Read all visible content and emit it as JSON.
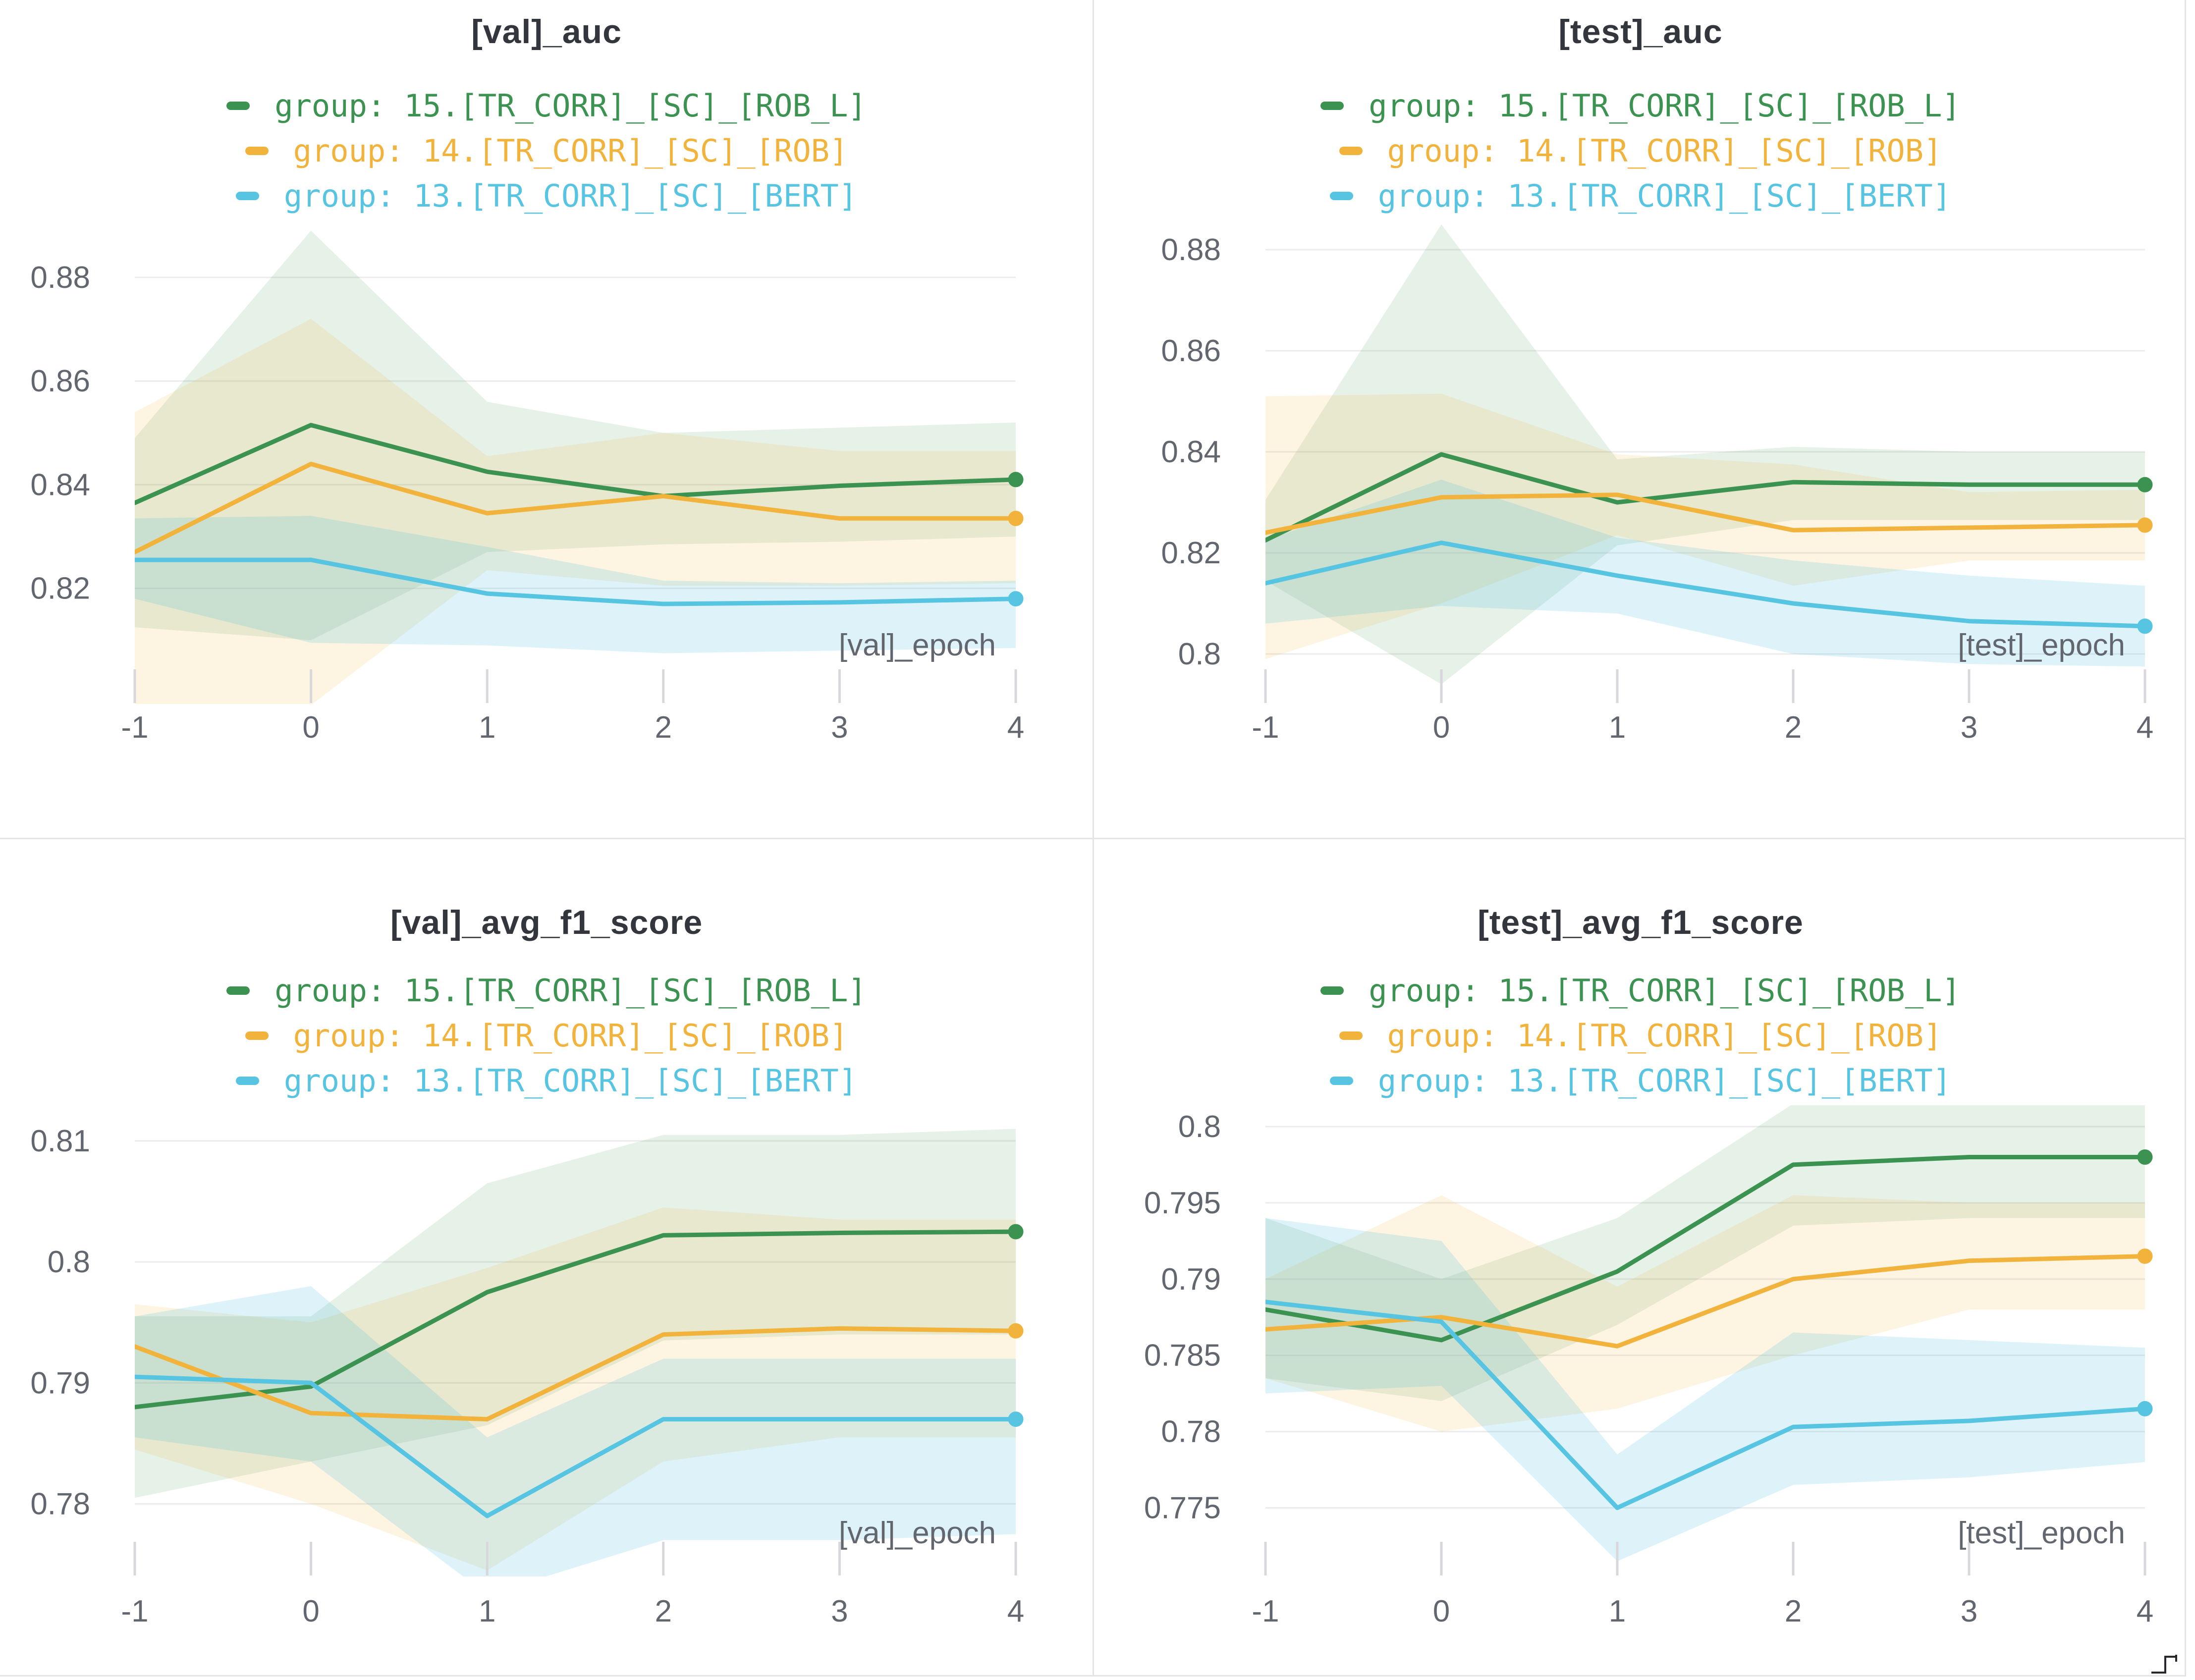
{
  "colors": {
    "green": "#3c9351",
    "orange": "#f1b33c",
    "cyan": "#57c4e1",
    "gridline": "#ececec",
    "tick_mark": "#d8d8dc",
    "axis_text": "#62676f",
    "title_text": "#33373d",
    "divider": "#e4e4e7"
  },
  "chart_data": [
    {
      "type": "line",
      "title": "[val]_auc",
      "xlabel": "[val]_epoch",
      "x": [
        -1,
        0,
        1,
        2,
        3,
        4
      ],
      "xtick_labels": [
        "-1",
        "0",
        "1",
        "2",
        "3",
        "4"
      ],
      "ytick_values": [
        0.88,
        0.86,
        0.84,
        0.82
      ],
      "ytick_labels": [
        "0.88",
        "0.86",
        "0.84",
        "0.82"
      ],
      "ylim": [
        0.7977,
        0.8904
      ],
      "grid": "horizontal",
      "legend_position": "top-center",
      "series": [
        {
          "name": "group: 15.[TR_CORR]_[SC]_[ROB_L]",
          "color": "#3c9351",
          "values": [
            0.8365,
            0.8515,
            0.8425,
            0.8378,
            0.8398,
            0.841
          ],
          "band_lo": [
            0.8125,
            0.81,
            0.827,
            0.8285,
            0.829,
            0.83
          ],
          "band_hi": [
            0.849,
            0.889,
            0.856,
            0.85,
            0.851,
            0.852
          ]
        },
        {
          "name": "group: 14.[TR_CORR]_[SC]_[ROB]",
          "color": "#f1b33c",
          "values": [
            0.827,
            0.844,
            0.8345,
            0.8378,
            0.8335,
            0.8335
          ],
          "band_lo": [
            0.7925,
            0.7975,
            0.8235,
            0.8205,
            0.8205,
            0.821
          ],
          "band_hi": [
            0.854,
            0.872,
            0.8455,
            0.85,
            0.8465,
            0.8465
          ]
        },
        {
          "name": "group: 13.[TR_CORR]_[SC]_[BERT]",
          "color": "#57c4e1",
          "values": [
            0.8255,
            0.8255,
            0.819,
            0.817,
            0.8173,
            0.818
          ],
          "band_lo": [
            0.818,
            0.8095,
            0.809,
            0.8075,
            0.808,
            0.8085
          ],
          "band_hi": [
            0.8335,
            0.834,
            0.828,
            0.8215,
            0.821,
            0.8215
          ]
        }
      ]
    },
    {
      "type": "line",
      "title": "[test]_auc",
      "xlabel": "[test]_epoch",
      "x": [
        -1,
        0,
        1,
        2,
        3,
        4
      ],
      "xtick_labels": [
        "-1",
        "0",
        "1",
        "2",
        "3",
        "4"
      ],
      "ytick_values": [
        0.88,
        0.86,
        0.84,
        0.82,
        0.8
      ],
      "ytick_labels": [
        "0.88",
        "0.86",
        "0.84",
        "0.82",
        "0.8"
      ],
      "ylim": [
        0.7901,
        0.8852
      ],
      "grid": "horizontal",
      "legend_position": "top-center",
      "series": [
        {
          "name": "group: 15.[TR_CORR]_[SC]_[ROB_L]",
          "color": "#3c9351",
          "values": [
            0.8225,
            0.8395,
            0.83,
            0.834,
            0.8335,
            0.8335
          ],
          "band_lo": [
            0.8145,
            0.794,
            0.8215,
            0.8265,
            0.8265,
            0.8265
          ],
          "band_hi": [
            0.8305,
            0.885,
            0.8385,
            0.841,
            0.84,
            0.84
          ]
        },
        {
          "name": "group: 14.[TR_CORR]_[SC]_[ROB]",
          "color": "#f1b33c",
          "values": [
            0.824,
            0.831,
            0.8315,
            0.8245,
            0.825,
            0.8255
          ],
          "band_lo": [
            0.799,
            0.81,
            0.8235,
            0.8135,
            0.8185,
            0.8185
          ],
          "band_hi": [
            0.851,
            0.8515,
            0.8395,
            0.8375,
            0.832,
            0.8325
          ]
        },
        {
          "name": "group: 13.[TR_CORR]_[SC]_[BERT]",
          "color": "#57c4e1",
          "values": [
            0.814,
            0.822,
            0.8155,
            0.81,
            0.8065,
            0.8055
          ],
          "band_lo": [
            0.806,
            0.8095,
            0.808,
            0.8,
            0.798,
            0.7975
          ],
          "band_hi": [
            0.8225,
            0.8345,
            0.823,
            0.8185,
            0.8155,
            0.8135
          ]
        }
      ]
    },
    {
      "type": "line",
      "title": "[val]_avg_f1_score",
      "xlabel": "[val]_epoch",
      "x": [
        -1,
        0,
        1,
        2,
        3,
        4
      ],
      "xtick_labels": [
        "-1",
        "0",
        "1",
        "2",
        "3",
        "4"
      ],
      "ytick_values": [
        0.81,
        0.8,
        0.79,
        0.78
      ],
      "ytick_labels": [
        "0.81",
        "0.8",
        "0.79",
        "0.78"
      ],
      "ylim": [
        0.774,
        0.8127
      ],
      "grid": "horizontal",
      "legend_position": "top-center",
      "series": [
        {
          "name": "group: 15.[TR_CORR]_[SC]_[ROB_L]",
          "color": "#3c9351",
          "values": [
            0.788,
            0.7897,
            0.7975,
            0.8022,
            0.8024,
            0.8025
          ],
          "band_lo": [
            0.7805,
            0.7835,
            0.7865,
            0.7935,
            0.794,
            0.794
          ],
          "band_hi": [
            0.7955,
            0.7955,
            0.8065,
            0.8105,
            0.8105,
            0.811
          ]
        },
        {
          "name": "group: 14.[TR_CORR]_[SC]_[ROB]",
          "color": "#f1b33c",
          "values": [
            0.793,
            0.7875,
            0.787,
            0.794,
            0.7945,
            0.7943
          ],
          "band_lo": [
            0.7845,
            0.78,
            0.7745,
            0.7835,
            0.7855,
            0.7855
          ],
          "band_hi": [
            0.7965,
            0.795,
            0.7995,
            0.8045,
            0.8035,
            0.8035
          ]
        },
        {
          "name": "group: 13.[TR_CORR]_[SC]_[BERT]",
          "color": "#57c4e1",
          "values": [
            0.7905,
            0.79,
            0.779,
            0.787,
            0.787,
            0.787
          ],
          "band_lo": [
            0.7855,
            0.7835,
            0.7725,
            0.777,
            0.777,
            0.7775
          ],
          "band_hi": [
            0.7955,
            0.798,
            0.7855,
            0.792,
            0.792,
            0.792
          ]
        }
      ]
    },
    {
      "type": "line",
      "title": "[test]_avg_f1_score",
      "xlabel": "[test]_epoch",
      "x": [
        -1,
        0,
        1,
        2,
        3,
        4
      ],
      "xtick_labels": [
        "-1",
        "0",
        "1",
        "2",
        "3",
        "4"
      ],
      "ytick_values": [
        0.8,
        0.795,
        0.79,
        0.785,
        0.78,
        0.775
      ],
      "ytick_labels": [
        "0.8",
        "0.795",
        "0.79",
        "0.785",
        "0.78",
        "0.775"
      ],
      "ylim": [
        0.7705,
        0.8012
      ],
      "grid": "horizontal",
      "legend_position": "top-center",
      "series": [
        {
          "name": "group: 15.[TR_CORR]_[SC]_[ROB_L]",
          "color": "#3c9351",
          "values": [
            0.788,
            0.786,
            0.7905,
            0.7975,
            0.798,
            0.798
          ],
          "band_lo": [
            0.7835,
            0.782,
            0.787,
            0.7935,
            0.794,
            0.794
          ],
          "band_hi": [
            0.794,
            0.79,
            0.794,
            0.8015,
            0.8015,
            0.8015
          ]
        },
        {
          "name": "group: 14.[TR_CORR]_[SC]_[ROB]",
          "color": "#f1b33c",
          "values": [
            0.7867,
            0.7875,
            0.7856,
            0.79,
            0.7912,
            0.7915
          ],
          "band_lo": [
            0.7835,
            0.78,
            0.7815,
            0.785,
            0.788,
            0.788
          ],
          "band_hi": [
            0.79,
            0.7955,
            0.7895,
            0.7955,
            0.795,
            0.795
          ]
        },
        {
          "name": "group: 13.[TR_CORR]_[SC]_[BERT]",
          "color": "#57c4e1",
          "values": [
            0.7885,
            0.7872,
            0.775,
            0.7803,
            0.7807,
            0.7815
          ],
          "band_lo": [
            0.7825,
            0.783,
            0.7715,
            0.7765,
            0.777,
            0.778
          ],
          "band_hi": [
            0.794,
            0.7925,
            0.7785,
            0.7865,
            0.786,
            0.7855
          ]
        }
      ]
    }
  ]
}
